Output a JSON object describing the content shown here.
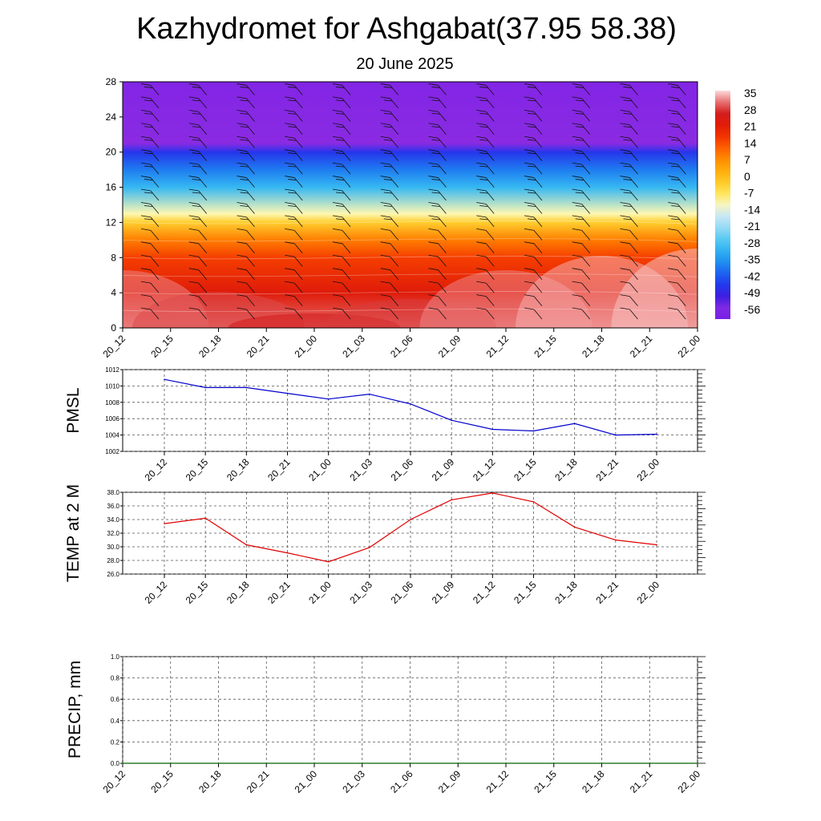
{
  "title": "Kazhydromet for Ashgabat(37.95 58.38)",
  "subtitle": "20 June 2025",
  "colors": {
    "pmsl_line": "#0000cc",
    "temp_line": "#e00000",
    "precip_line": "#006400"
  },
  "chart_data": [
    {
      "type": "heatmap",
      "name": "cross-section",
      "x_ticks": [
        "20_12",
        "20_15",
        "20_18",
        "20_21",
        "21_00",
        "21_03",
        "21_06",
        "21_09",
        "21_12",
        "21_15",
        "21_18",
        "21_21",
        "22_00"
      ],
      "y_ticks": [
        "0",
        "4",
        "8",
        "12",
        "16",
        "20",
        "24",
        "28"
      ],
      "ylim": [
        0,
        28
      ],
      "colorbar_labels": [
        "35",
        "28",
        "21",
        "14",
        "7",
        "0",
        "-7",
        "-14",
        "-21",
        "-28",
        "-35",
        "-42",
        "-49",
        "-56"
      ],
      "colorbar_range": [
        -60,
        38
      ],
      "layer_temperature": [
        {
          "level": 0,
          "values": [
            34,
            31,
            28,
            30,
            34,
            36,
            37
          ]
        },
        {
          "level": 4,
          "values": [
            24,
            23,
            22,
            23,
            24,
            25,
            25
          ]
        },
        {
          "level": 8,
          "values": [
            17,
            17,
            16,
            17,
            17,
            18,
            18
          ]
        },
        {
          "level": 10,
          "values": [
            10,
            10,
            9,
            10,
            10,
            11,
            11
          ]
        },
        {
          "level": 12,
          "values": [
            -1,
            -1,
            -2,
            -2,
            -2,
            -3,
            -3
          ]
        },
        {
          "level": 13,
          "values": [
            -8,
            -8,
            -9,
            -10,
            -11,
            -12,
            -13
          ]
        },
        {
          "level": 16,
          "values": [
            -30,
            -30,
            -30,
            -30,
            -30,
            -29,
            -28
          ]
        },
        {
          "level": 18,
          "values": [
            -38,
            -38,
            -38,
            -38,
            -38,
            -37,
            -37
          ]
        },
        {
          "level": 20,
          "values": [
            -46,
            -46,
            -46,
            -46,
            -46,
            -46,
            -46
          ]
        },
        {
          "level": 21,
          "values": [
            -56,
            -56,
            -56,
            -56,
            -56,
            -56,
            -56
          ]
        },
        {
          "level": 28,
          "values": [
            -58,
            -58,
            -58,
            -58,
            -58,
            -58,
            -58
          ]
        }
      ],
      "wind": "wind barbs at every 3-hour column"
    },
    {
      "type": "line",
      "name": "PMSL",
      "ylabel": "PMSL",
      "x": [
        "20_12",
        "20_15",
        "20_18",
        "20_21",
        "21_00",
        "21_03",
        "21_06",
        "21_09",
        "21_12",
        "21_15",
        "21_18",
        "21_21",
        "22_00"
      ],
      "values": [
        1010.8,
        1009.8,
        1009.8,
        1009.1,
        1008.4,
        1009.0,
        1007.8,
        1005.8,
        1004.7,
        1004.5,
        1005.4,
        1004.0,
        1004.1
      ],
      "ylim": [
        1002,
        1012
      ],
      "y_ticks": [
        "1002",
        "1004",
        "1006",
        "1008",
        "1010",
        "1012"
      ]
    },
    {
      "type": "line",
      "name": "TEMP at 2 M",
      "ylabel": "TEMP at 2 M",
      "x": [
        "20_12",
        "20_15",
        "20_18",
        "20_21",
        "21_00",
        "21_03",
        "21_06",
        "21_09",
        "21_12",
        "21_15",
        "21_18",
        "21_21",
        "22_00"
      ],
      "values": [
        33.4,
        34.2,
        30.3,
        29.1,
        27.8,
        29.9,
        34.0,
        36.9,
        37.9,
        36.6,
        32.9,
        31.0,
        30.3
      ],
      "ylim": [
        26,
        38
      ],
      "y_ticks": [
        "26.0",
        "28.0",
        "30.0",
        "32.0",
        "34.0",
        "36.0",
        "38.0"
      ]
    },
    {
      "type": "line",
      "name": "PRECIP, mm",
      "ylabel": "PRECIP, mm",
      "x_ticks": [
        "20_12",
        "20_15",
        "20_18",
        "20_21",
        "21_00",
        "21_03",
        "21_06",
        "21_09",
        "21_12",
        "21_15",
        "21_18",
        "21_21",
        "22_00"
      ],
      "values": [
        0,
        0,
        0,
        0,
        0,
        0,
        0,
        0,
        0,
        0,
        0,
        0,
        0
      ],
      "ylim": [
        0,
        1
      ],
      "y_ticks": [
        "0.0",
        "0.2",
        "0.4",
        "0.6",
        "0.8",
        "1.0"
      ]
    }
  ]
}
